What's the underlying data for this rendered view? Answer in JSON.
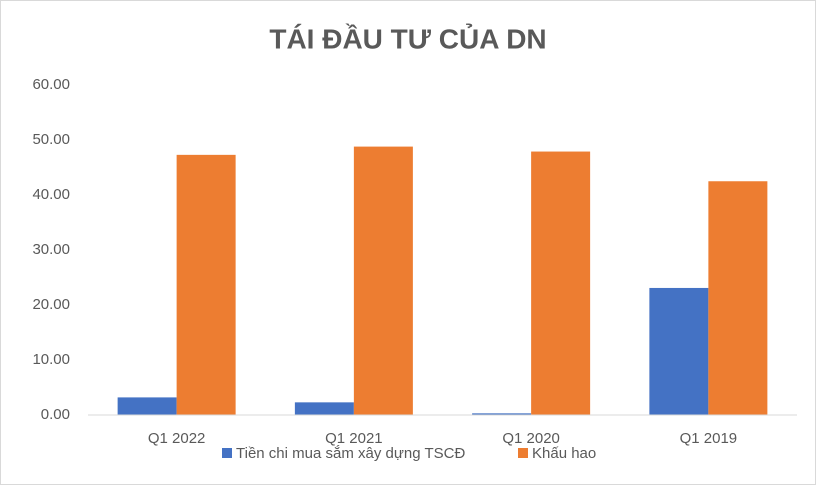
{
  "chart_data": {
    "type": "bar",
    "title": "TÁI ĐẦU TƯ CỦA DN",
    "categories": [
      "Q1 2022",
      "Q1 2021",
      "Q1 2020",
      "Q1 2019"
    ],
    "series": [
      {
        "name": "Tiền chi mua sắm xây dựng TSCĐ",
        "color": "#4472c4",
        "values": [
          3.2,
          2.3,
          0.3,
          23.1
        ]
      },
      {
        "name": "Khấu hao",
        "color": "#ed7d31",
        "values": [
          47.3,
          48.8,
          47.9,
          42.5
        ]
      }
    ],
    "ylim": [
      0,
      60
    ],
    "yticks": [
      {
        "value": 0,
        "label": "0.00"
      },
      {
        "value": 10,
        "label": "10.00"
      },
      {
        "value": 20,
        "label": "20.00"
      },
      {
        "value": 30,
        "label": "30.00"
      },
      {
        "value": 40,
        "label": "40.00"
      },
      {
        "value": 50,
        "label": "50.00"
      },
      {
        "value": 60,
        "label": "60.00"
      }
    ],
    "grid": false,
    "legend": "bottom"
  }
}
